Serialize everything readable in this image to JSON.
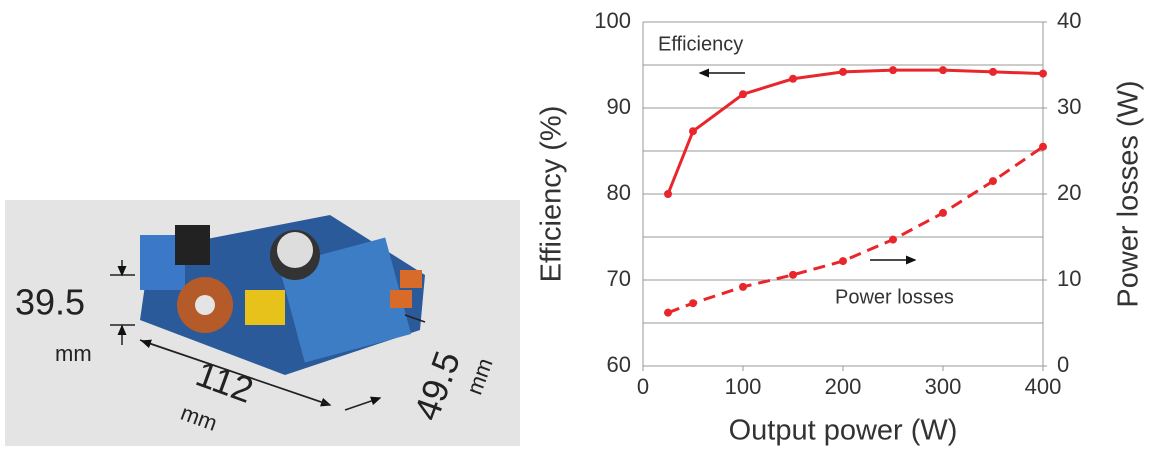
{
  "photo": {
    "dimensions": [
      "39.5",
      "mm",
      "112",
      "mm",
      "49.5",
      "mm"
    ]
  },
  "chart_data": {
    "type": "line",
    "xlabel": "Output power (W)",
    "ylabel": "Efficiency (%)",
    "y2label": "Power losses (W)",
    "x": [
      25,
      50,
      100,
      150,
      200,
      250,
      300,
      350,
      400
    ],
    "series": [
      {
        "name": "Efficiency",
        "color": "#e8262b",
        "linestyle": "solid",
        "values": [
          80,
          87.3,
          91.6,
          93.4,
          94.2,
          94.4,
          94.4,
          94.2,
          94
        ]
      },
      {
        "name": "Power losses",
        "color": "#e8262b",
        "linestyle": "dashed",
        "axis": "y2",
        "values": [
          6.2,
          7.3,
          9.2,
          10.6,
          12.2,
          14.7,
          17.8,
          21.5,
          25.5
        ]
      }
    ],
    "xlim": [
      0,
      400
    ],
    "xticks": [
      0,
      100,
      200,
      300,
      400
    ],
    "ylim": [
      60,
      100
    ],
    "yticks": [
      60,
      70,
      80,
      90,
      100
    ],
    "minor_yticks": [
      65,
      75,
      85,
      95
    ],
    "y2lim": [
      0,
      40
    ],
    "y2ticks": [
      0,
      10,
      20,
      30,
      40
    ],
    "grid": true
  }
}
